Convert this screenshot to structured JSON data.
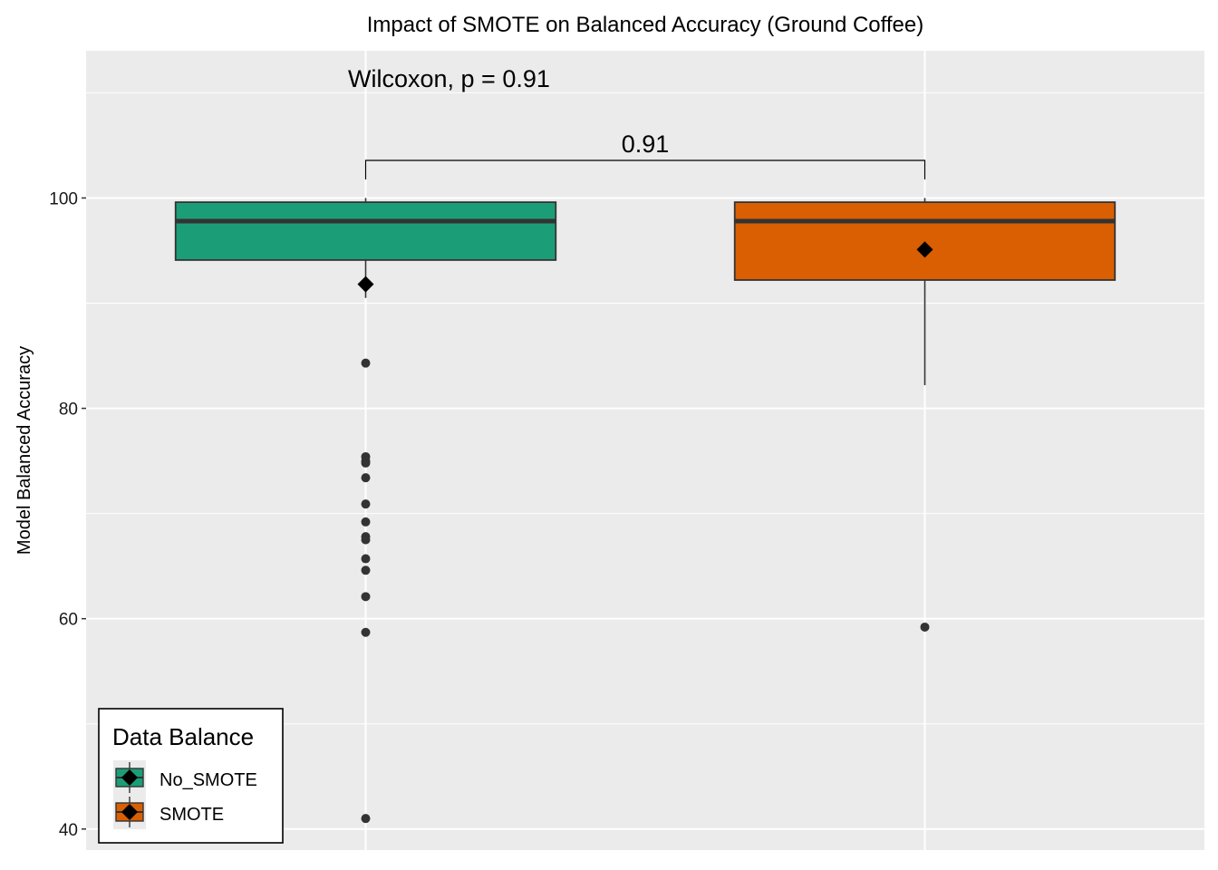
{
  "chart_data": {
    "type": "box",
    "title": "Impact of SMOTE on Balanced Accuracy (Ground Coffee)",
    "xlabel": "",
    "ylabel": "Model Balanced Accuracy",
    "ylim": [
      38,
      114
    ],
    "y_ticks": [
      40,
      60,
      80,
      100
    ],
    "grid": true,
    "legend": {
      "title": "Data Balance",
      "position": "bottom-left",
      "entries": [
        "No_SMOTE",
        "SMOTE"
      ]
    },
    "series": [
      {
        "name": "No_SMOTE",
        "color": "#1b9e77",
        "min": 90.5,
        "q1": 94.1,
        "median": 97.8,
        "q3": 99.6,
        "max": 100.0,
        "mean": 91.8,
        "outliers": [
          84.3,
          75.4,
          75.0,
          74.8,
          73.4,
          70.9,
          69.2,
          67.8,
          67.5,
          65.7,
          64.6,
          62.1,
          58.7,
          41.0
        ]
      },
      {
        "name": "SMOTE",
        "color": "#d95f02",
        "min": 82.2,
        "q1": 92.2,
        "median": 97.8,
        "q3": 99.6,
        "max": 100.0,
        "mean": 95.1,
        "outliers": [
          59.2
        ]
      }
    ],
    "annotations": {
      "global_test": "Wilcoxon, p = 0.91",
      "pairwise_p": "0.91"
    }
  }
}
